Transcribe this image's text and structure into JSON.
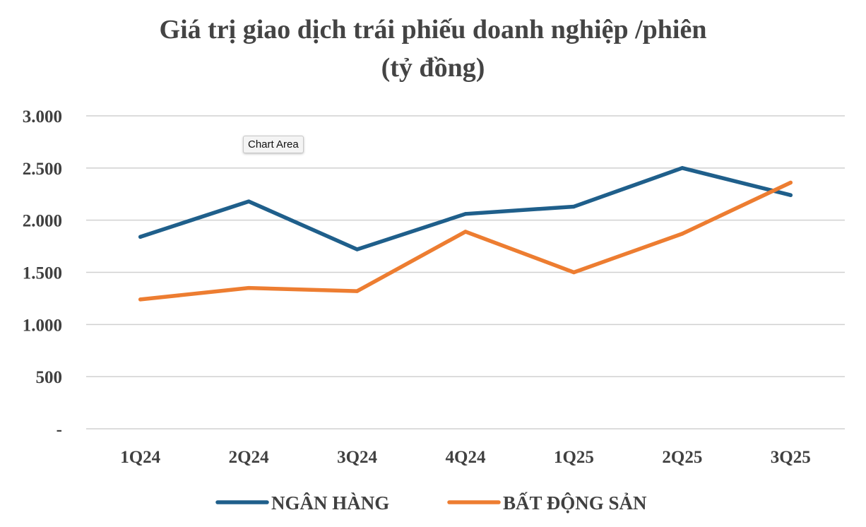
{
  "chart_data": {
    "type": "line",
    "title": "Giá trị giao dịch trái phiếu doanh nghiệp /phiên",
    "subtitle": "(tỷ đồng)",
    "xlabel": "",
    "ylabel": "",
    "categories": [
      "1Q24",
      "2Q24",
      "3Q24",
      "4Q24",
      "1Q25",
      "2Q25",
      "3Q25"
    ],
    "ylim": [
      0,
      3000
    ],
    "yticks": [
      0,
      500,
      1000,
      1500,
      2000,
      2500,
      3000
    ],
    "ytick_labels": [
      "-",
      "500",
      "1.000",
      "1.500",
      "2.000",
      "2.500",
      "3.000"
    ],
    "grid": true,
    "legend_position": "bottom",
    "series": [
      {
        "name": "NGÂN HÀNG",
        "color": "#1f5f8b",
        "values": [
          1840,
          2180,
          1720,
          2060,
          2130,
          2500,
          2240
        ]
      },
      {
        "name": "BẤT ĐỘNG SẢN",
        "color": "#ed7d31",
        "values": [
          1240,
          1350,
          1320,
          1890,
          1500,
          1870,
          2360
        ]
      }
    ]
  },
  "tooltip": "Chart Area"
}
